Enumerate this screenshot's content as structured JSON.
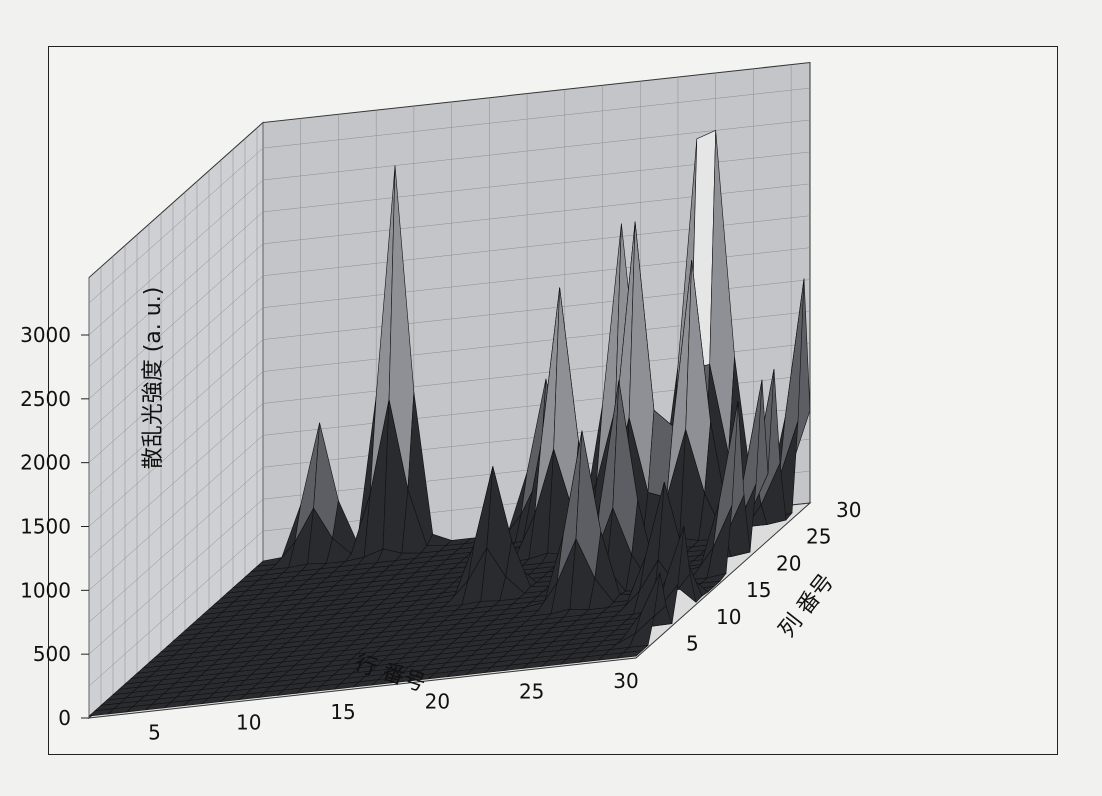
{
  "chart_data": {
    "type": "surface3d",
    "zlabel": "散乱光強度 (a. u.)",
    "xlabel": "行 番号",
    "ylabel": "列 番号",
    "zlim": [
      0,
      3000
    ],
    "z_ticks": [
      "0",
      "500",
      "1000",
      "1500",
      "2000",
      "2500",
      "3000"
    ],
    "x_ticks": [
      "5",
      "10",
      "15",
      "20",
      "25",
      "30"
    ],
    "y_ticks": [
      "5",
      "10",
      "15",
      "20",
      "25",
      "30"
    ],
    "grid": true,
    "peaks": [
      {
        "row": 4,
        "col": 30,
        "value": 1050
      },
      {
        "row": 8,
        "col": 30,
        "value": 3000
      },
      {
        "row": 16,
        "col": 30,
        "value": 1200
      },
      {
        "row": 18,
        "col": 26,
        "value": 2050
      },
      {
        "row": 20,
        "col": 30,
        "value": 2350
      },
      {
        "row": 22,
        "col": 26,
        "value": 2500
      },
      {
        "row": 24,
        "col": 30,
        "value": 2950
      },
      {
        "row": 25,
        "col": 30,
        "value": 3000
      },
      {
        "row": 25,
        "col": 26,
        "value": 2150
      },
      {
        "row": 17,
        "col": 18,
        "value": 1000
      },
      {
        "row": 23,
        "col": 14,
        "value": 1350
      },
      {
        "row": 24,
        "col": 17,
        "value": 1600
      },
      {
        "row": 28,
        "col": 12,
        "value": 950
      },
      {
        "row": 30,
        "col": 24,
        "value": 1300
      },
      {
        "row": 30,
        "col": 22,
        "value": 1300
      },
      {
        "row": 30,
        "col": 9,
        "value": 700
      },
      {
        "row": 30,
        "col": 5,
        "value": 500
      },
      {
        "row": 30,
        "col": 18,
        "value": 1300
      },
      {
        "row": 30,
        "col": 29,
        "value": 1800
      }
    ]
  }
}
